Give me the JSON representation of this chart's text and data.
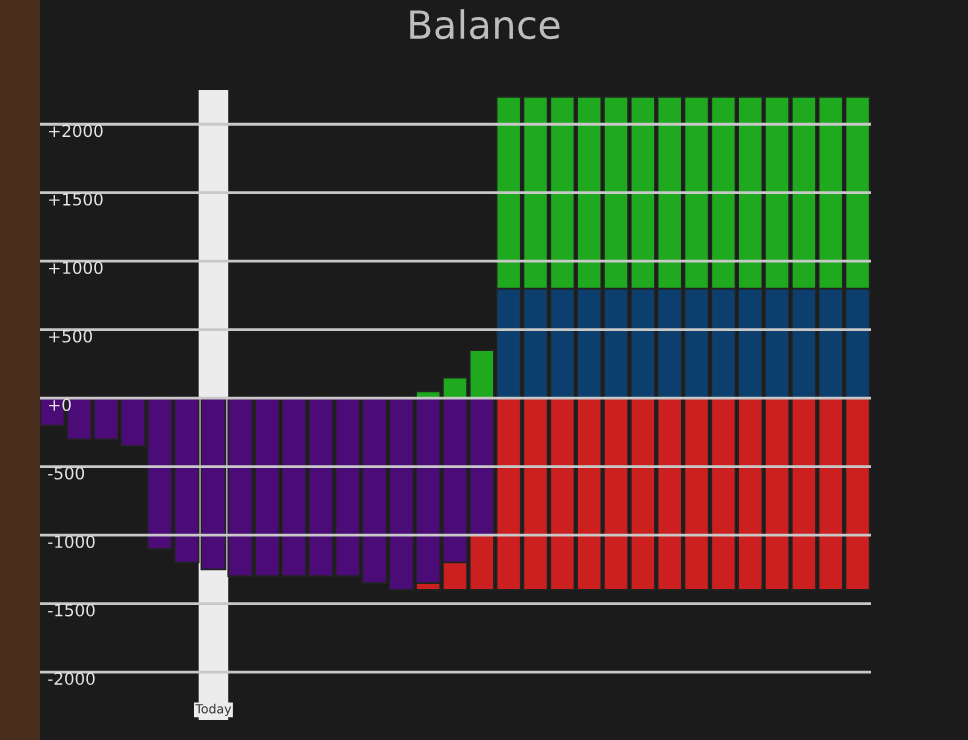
{
  "chart_data": {
    "type": "bar",
    "title": "Balance",
    "stacked": true,
    "categories": [
      null,
      null,
      null,
      null,
      null,
      null,
      null,
      null,
      null,
      null,
      null,
      null,
      null,
      null,
      null,
      null,
      null,
      null,
      null,
      null,
      null,
      null,
      null,
      null,
      null,
      null,
      null,
      null,
      null,
      null,
      null
    ],
    "series": [
      {
        "color": "#4b0c78",
        "values": [
          -200,
          -300,
          -300,
          -350,
          -1100,
          -1200,
          -1250,
          -1300,
          -1300,
          -1300,
          -1300,
          -1300,
          -1350,
          -1400,
          -1350,
          -1200,
          -1000,
          null,
          null,
          null,
          null,
          null,
          null,
          null,
          null,
          null,
          null,
          null,
          null,
          null,
          null
        ]
      },
      {
        "color": "#cc2020",
        "values": [
          null,
          null,
          null,
          null,
          null,
          null,
          null,
          null,
          null,
          null,
          null,
          null,
          null,
          null,
          -50,
          -200,
          -400,
          -1400,
          -1400,
          -1400,
          -1400,
          -1400,
          -1400,
          -1400,
          -1400,
          -1400,
          -1400,
          -1400,
          -1400,
          -1400,
          -1400
        ]
      },
      {
        "color": "#0d3f6e",
        "values": [
          null,
          null,
          null,
          null,
          null,
          null,
          null,
          null,
          null,
          null,
          null,
          null,
          null,
          null,
          null,
          null,
          null,
          800,
          800,
          800,
          800,
          800,
          800,
          800,
          800,
          800,
          800,
          800,
          800,
          800,
          800
        ]
      },
      {
        "color": "#1ea91e",
        "values": [
          null,
          null,
          null,
          null,
          null,
          null,
          null,
          null,
          null,
          null,
          null,
          null,
          null,
          null,
          50,
          150,
          350,
          1400,
          1400,
          1400,
          1400,
          1400,
          1400,
          1400,
          1400,
          1400,
          1400,
          1400,
          1400,
          1400,
          1400
        ]
      }
    ],
    "ylim": [
      -2350,
      2250
    ],
    "yticks": [
      {
        "value": 2000,
        "label": "+2000"
      },
      {
        "value": 1500,
        "label": "+1500"
      },
      {
        "value": 1000,
        "label": "+1000"
      },
      {
        "value": 500,
        "label": "+500"
      },
      {
        "value": 0,
        "label": "+0"
      },
      -500,
      -1000,
      -1500,
      -2000
    ],
    "grid": "y",
    "tick_labels": "y",
    "annotations": [
      "Today"
    ]
  }
}
